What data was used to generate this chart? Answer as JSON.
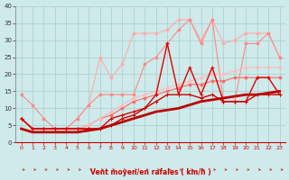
{
  "xlabel": "Vent moyen/en rafales ( km/h )",
  "background_color": "#ceeaea",
  "grid_color": "#aacccc",
  "x_values": [
    0,
    1,
    2,
    3,
    4,
    5,
    6,
    7,
    8,
    9,
    10,
    11,
    12,
    13,
    14,
    15,
    16,
    17,
    18,
    19,
    20,
    21,
    22,
    23
  ],
  "series": [
    {
      "color": "#ffaaaa",
      "linewidth": 0.8,
      "marker": "o",
      "markersize": 2.0,
      "y": [
        7,
        4,
        4,
        4,
        4,
        7,
        11,
        25,
        19,
        23,
        32,
        32,
        32,
        33,
        36,
        36,
        30,
        36,
        29,
        30,
        32,
        32,
        32,
        25
      ]
    },
    {
      "color": "#ff8888",
      "linewidth": 0.8,
      "marker": "o",
      "markersize": 2.0,
      "y": [
        14,
        11,
        7,
        4,
        4,
        7,
        11,
        14,
        14,
        14,
        14,
        23,
        25,
        29,
        33,
        36,
        29,
        36,
        12,
        12,
        29,
        29,
        32,
        25
      ]
    },
    {
      "color": "#ff6666",
      "linewidth": 0.8,
      "marker": "o",
      "markersize": 2.0,
      "y": [
        7,
        4,
        4,
        4,
        4,
        4,
        5,
        7,
        8,
        10,
        12,
        13,
        14,
        15,
        16,
        17,
        17,
        18,
        18,
        19,
        19,
        19,
        19,
        19
      ]
    },
    {
      "color": "#ffbbbb",
      "linewidth": 0.8,
      "marker": "o",
      "markersize": 2.0,
      "y": [
        7,
        4,
        4,
        4,
        4,
        4,
        5,
        7,
        9,
        11,
        13,
        14,
        15,
        16,
        17,
        18,
        19,
        20,
        20,
        21,
        22,
        22,
        22,
        22
      ]
    },
    {
      "color": "#dd0000",
      "linewidth": 1.0,
      "marker": "+",
      "markersize": 3.5,
      "y": [
        7,
        4,
        4,
        4,
        4,
        4,
        4,
        4,
        7,
        8,
        9,
        10,
        14,
        29,
        14,
        22,
        14,
        22,
        12,
        12,
        12,
        19,
        19,
        14
      ]
    },
    {
      "color": "#cc0000",
      "linewidth": 1.0,
      "marker": "+",
      "markersize": 3.5,
      "y": [
        7,
        4,
        4,
        4,
        4,
        4,
        4,
        4,
        5,
        7,
        8,
        10,
        12,
        14,
        14,
        14,
        13,
        14,
        12,
        12,
        12,
        14,
        14,
        14
      ]
    },
    {
      "color": "#bb0000",
      "linewidth": 2.0,
      "marker": null,
      "markersize": 0,
      "y": [
        4,
        3,
        3,
        3,
        3,
        3,
        3.5,
        4,
        5,
        6,
        7,
        8,
        9,
        9.5,
        10,
        11,
        12,
        12.5,
        13,
        13.5,
        14,
        14,
        14.5,
        15
      ]
    }
  ],
  "ylim": [
    0,
    40
  ],
  "xlim": [
    -0.5,
    23.5
  ],
  "yticks": [
    0,
    5,
    10,
    15,
    20,
    25,
    30,
    35,
    40
  ],
  "xticks": [
    0,
    1,
    2,
    3,
    4,
    5,
    6,
    7,
    8,
    9,
    10,
    11,
    12,
    13,
    14,
    15,
    16,
    17,
    18,
    19,
    20,
    21,
    22,
    23
  ],
  "arrow_color": "#cc2222",
  "figsize": [
    3.2,
    2.0
  ],
  "dpi": 100
}
